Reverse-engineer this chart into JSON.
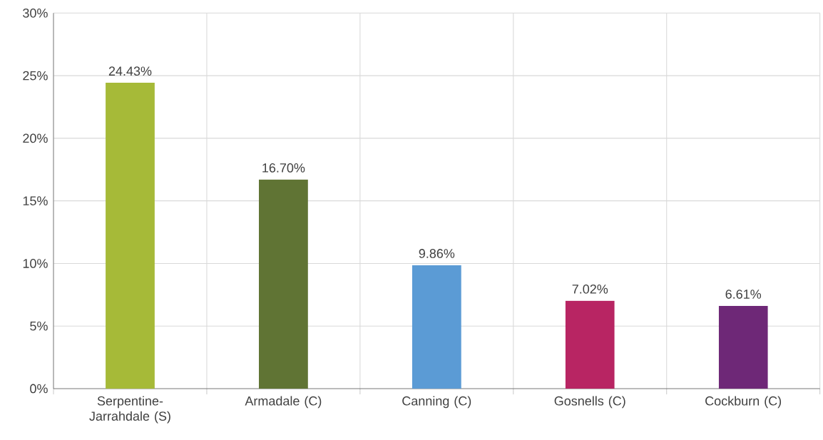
{
  "chart_data": {
    "type": "bar",
    "categories": [
      "Serpentine-Jarrahdale (S)",
      "Armadale (C)",
      "Canning (C)",
      "Gosnells (C)",
      "Cockburn (C)"
    ],
    "values": [
      24.43,
      16.7,
      9.86,
      7.02,
      6.61
    ],
    "colors": [
      "#a6ba38",
      "#607434",
      "#5b9bd5",
      "#b82563",
      "#6e2877"
    ],
    "value_labels": [
      "24.43%",
      "16.70%",
      "9.86%",
      "7.02%",
      "6.61%"
    ],
    "ylim": [
      0,
      30
    ],
    "yticks": [
      {
        "value": 0,
        "label": "0%"
      },
      {
        "value": 5,
        "label": "5%"
      },
      {
        "value": 10,
        "label": "10%"
      },
      {
        "value": 15,
        "label": "15%"
      },
      {
        "value": 20,
        "label": "20%"
      },
      {
        "value": 25,
        "label": "25%"
      },
      {
        "value": 30,
        "label": "30%"
      }
    ],
    "grid": true
  }
}
